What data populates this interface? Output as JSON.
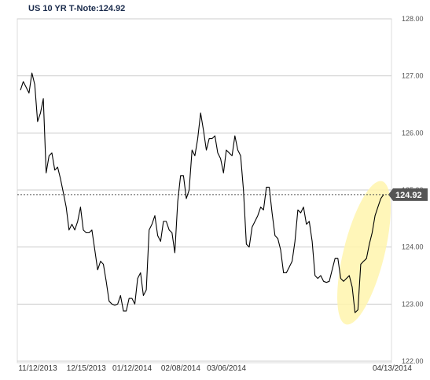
{
  "chart_data": {
    "type": "line",
    "title": "US 10 YR T-Note:124.92",
    "xlabel": "",
    "ylabel": "",
    "ylim": [
      122.0,
      128.0
    ],
    "ytick_labels": [
      "122.00",
      "123.00",
      "124.00",
      "125.00",
      "126.00",
      "127.00",
      "128.00"
    ],
    "ytick_values": [
      122,
      123,
      124,
      125,
      126,
      127,
      128
    ],
    "xtick_labels": [
      "11/12/2013",
      "12/15/2013",
      "01/12/2014",
      "02/08/2014",
      "03/06/2014",
      "04/13/2014"
    ],
    "xtick_positions": [
      0,
      17,
      33,
      50,
      66,
      91
    ],
    "grid": true,
    "last_value": 124.92,
    "last_value_label": "124.92",
    "highlight": "ellipse around latest rally",
    "colors": {
      "line": "#000000",
      "grid": "#cccccc",
      "reference_line": "#555555",
      "last_label_bg": "#555555",
      "highlight": "#fff3a0"
    },
    "series": [
      {
        "values": [
          126.75,
          126.9,
          126.8,
          126.7,
          127.05,
          126.85,
          126.2,
          126.35,
          126.6,
          125.3,
          125.6,
          125.65,
          125.35,
          125.4,
          125.2,
          124.95,
          124.7,
          124.3,
          124.4,
          124.3,
          124.45,
          124.7,
          124.3,
          124.25,
          124.25,
          124.3,
          123.95,
          123.6,
          123.75,
          123.7,
          123.4,
          123.05,
          123.0,
          122.98,
          123.0,
          123.15,
          122.88,
          122.88,
          123.1,
          123.1,
          123.0,
          123.45,
          123.55,
          123.15,
          123.25,
          124.3,
          124.4,
          124.55,
          124.2,
          124.1,
          124.45,
          124.45,
          124.3,
          124.25,
          123.9,
          124.8,
          125.25,
          125.25,
          124.85,
          125.0,
          125.7,
          125.6,
          125.9,
          126.35,
          126.05,
          125.7,
          125.9,
          125.9,
          125.95,
          125.65,
          125.55,
          125.3,
          125.7,
          125.65,
          125.6,
          125.95,
          125.7,
          125.6,
          125.0,
          124.05,
          124.0,
          124.35,
          124.45,
          124.55,
          124.7,
          124.65,
          125.05,
          125.05,
          124.6,
          124.2,
          124.15,
          123.95,
          123.55,
          123.55,
          123.65,
          123.75,
          124.1,
          124.65,
          124.6,
          124.7,
          124.4,
          124.45,
          124.1,
          123.5,
          123.45,
          123.5,
          123.4,
          123.38,
          123.4,
          123.6,
          123.8,
          123.8,
          123.45,
          123.4,
          123.45,
          123.5,
          123.3,
          122.85,
          122.9,
          123.7,
          123.75,
          123.8,
          124.05,
          124.25,
          124.55,
          124.7,
          124.85,
          124.92
        ]
      }
    ]
  }
}
